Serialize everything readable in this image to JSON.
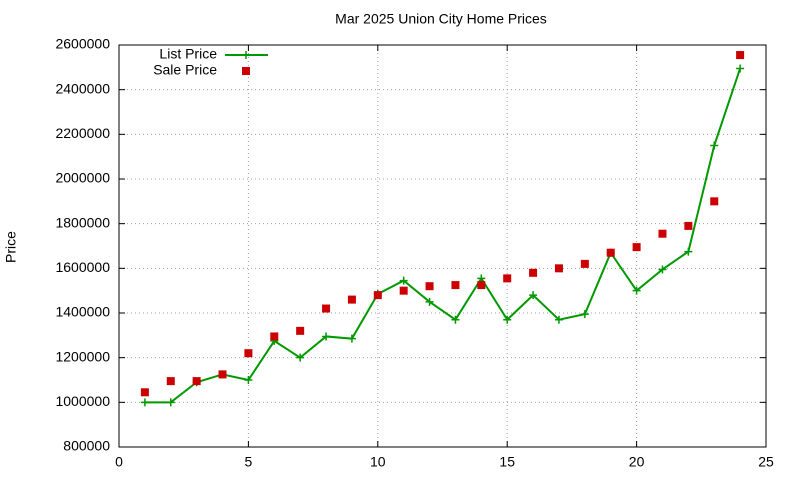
{
  "chart_data": {
    "type": "line",
    "title": "Mar 2025 Union City Home Prices",
    "y_label": "Price",
    "x": [
      1,
      2,
      3,
      4,
      5,
      6,
      7,
      8,
      9,
      10,
      11,
      12,
      13,
      14,
      15,
      16,
      17,
      18,
      19,
      20,
      21,
      22,
      23,
      24
    ],
    "series": [
      {
        "name": "List Price",
        "color": "#009900",
        "style": "linespoints",
        "values": [
          1000000,
          1000000,
          1090000,
          1125000,
          1100000,
          1275000,
          1200000,
          1295000,
          1285000,
          1485000,
          1545000,
          1450000,
          1370000,
          1555000,
          1370000,
          1480000,
          1370000,
          1395000,
          1670000,
          1500000,
          1595000,
          1675000,
          2150000,
          2495000
        ]
      },
      {
        "name": "Sale Price",
        "color": "#cc0000",
        "style": "points",
        "values": [
          1045000,
          1095000,
          1095000,
          1125000,
          1220000,
          1295000,
          1320000,
          1420000,
          1460000,
          1480000,
          1500000,
          1520000,
          1525000,
          1525000,
          1555000,
          1580000,
          1600000,
          1620000,
          1670000,
          1695000,
          1755000,
          1790000,
          1900000,
          2555000
        ]
      }
    ],
    "xlim": [
      0,
      25
    ],
    "xticks": [
      0,
      5,
      10,
      15,
      20,
      25
    ],
    "ylim": [
      800000,
      2600000
    ],
    "yticks": [
      800000,
      1000000,
      1200000,
      1400000,
      1600000,
      1800000,
      2000000,
      2200000,
      2400000,
      2600000
    ],
    "grid": true,
    "legend": "top-left"
  }
}
